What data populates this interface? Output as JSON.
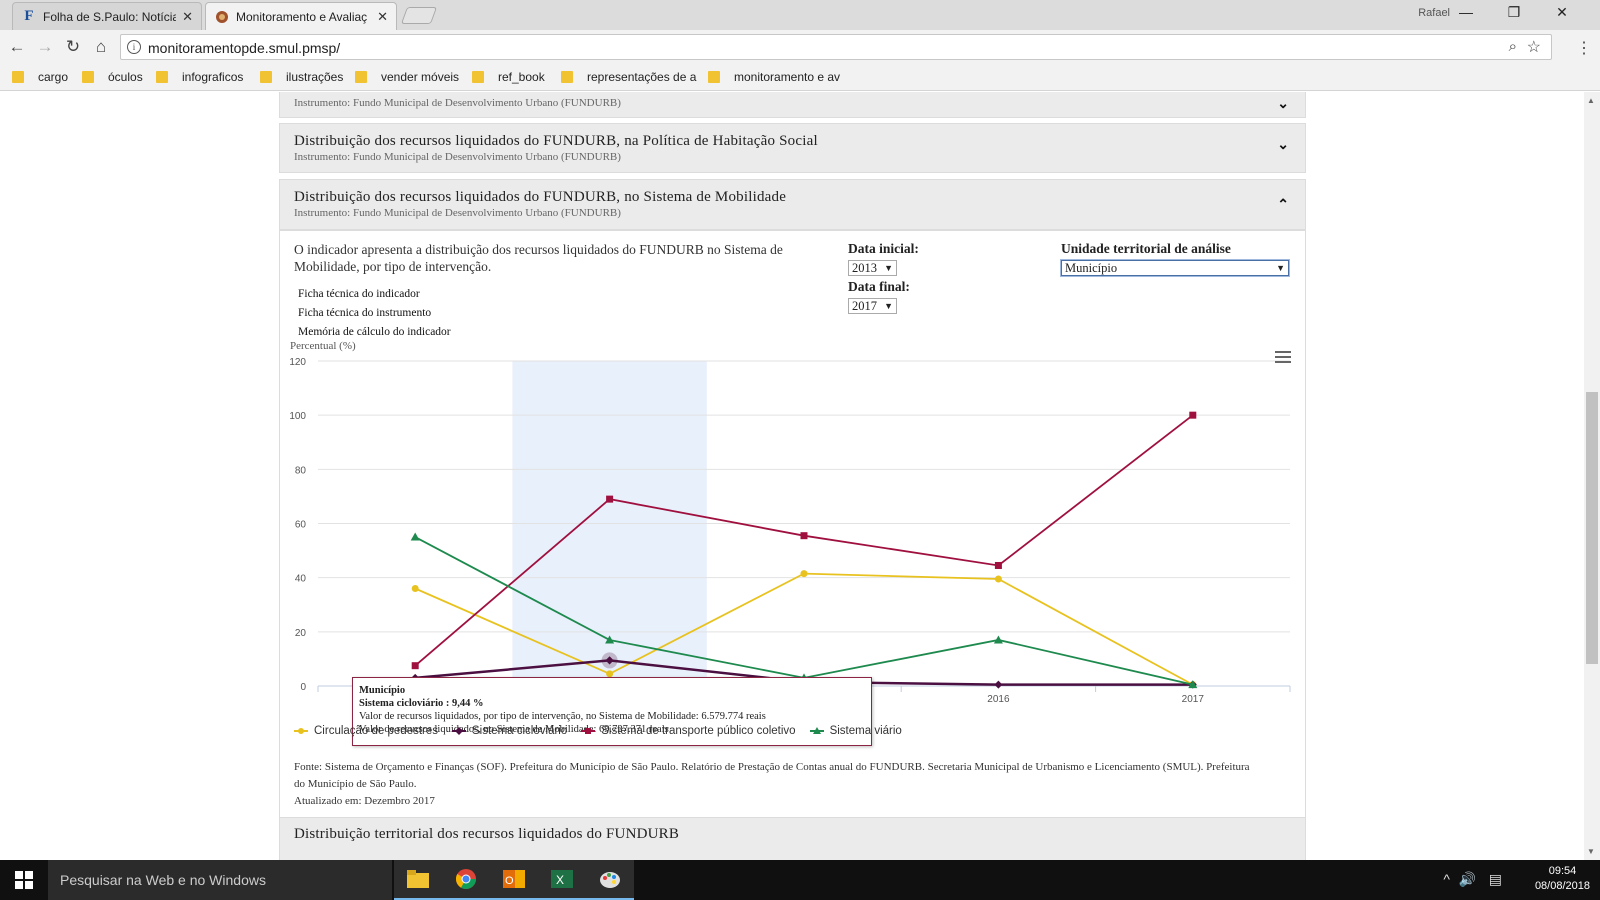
{
  "browser": {
    "tabs": [
      {
        "title": "Folha de S.Paulo: Notícia",
        "favicon": "F",
        "active": false
      },
      {
        "title": "Monitoramento e Avaliaç",
        "favicon": "brasao",
        "active": true
      }
    ],
    "user": "Rafael",
    "url": "monitoramentopde.smul.pmsp/",
    "bookmarks": [
      "cargo",
      "óculos",
      "infograficos",
      "ilustrações",
      "vender móveis",
      "ref_book",
      "representações de a",
      "monitoramento e av"
    ]
  },
  "page": {
    "top_section": {
      "subtitle": "Instrumento: Fundo Municipal de Desenvolvimento Urbano (FUNDURB)"
    },
    "section_habitacao": {
      "title": "Distribuição dos recursos liquidados do FUNDURB, na Política de Habitação Social",
      "subtitle": "Instrumento: Fundo Municipal de Desenvolvimento Urbano (FUNDURB)"
    },
    "section_mobilidade": {
      "title": "Distribuição dos recursos liquidados do FUNDURB, no Sistema de Mobilidade",
      "subtitle": "Instrumento: Fundo Municipal de Desenvolvimento Urbano (FUNDURB)",
      "description": "O indicador apresenta a distribuição dos recursos liquidados do FUNDURB no Sistema de Mobilidade, por tipo de intervenção.",
      "links": [
        "Ficha técnica do indicador",
        "Ficha técnica do instrumento",
        "Memória de cálculo do indicador"
      ],
      "filters": {
        "data_inicial_label": "Data inicial:",
        "data_inicial_value": "2013",
        "data_final_label": "Data final:",
        "data_final_value": "2017",
        "unidade_label": "Unidade territorial de análise",
        "unidade_value": "Município"
      },
      "tooltip": {
        "place": "Município",
        "series_line": "Sistema cicloviário : 9,44 %",
        "line1": "Valor de recursos liquidados, por tipo de intervenção, no Sistema de Mobilidade: 6.579.774 reais",
        "line2": "Valor de recursos liquidados, no Sistema de Mobilidade: 69.727.371 reais"
      },
      "source": "Fonte: Sistema de Orçamento e Finanças (SOF). Prefeitura do Município de São Paulo. Relatório de Prestação de Contas anual do FUNDURB. Secretaria Municipal de Urbanismo e Licenciamento (SMUL). Prefeitura do Município de São Paulo.",
      "updated": "Atualizado em: Dezembro 2017"
    },
    "section_territorial": {
      "title": "Distribuição territorial dos recursos liquidados do FUNDURB"
    }
  },
  "chart_data": {
    "type": "line",
    "ylabel": "Percentual (%)",
    "ylim": [
      0,
      120
    ],
    "yticks": [
      0,
      20,
      40,
      60,
      80,
      100,
      120
    ],
    "x": [
      "2013",
      "2014",
      "2015",
      "2016",
      "2017"
    ],
    "highlighted_category": "2014",
    "grid": true,
    "legend_position": "bottom-left",
    "series": [
      {
        "name": "Circulação de pedestres",
        "color": "#e8c21f",
        "marker": "circle",
        "values": [
          36,
          4.5,
          41.5,
          39.5,
          0.5
        ]
      },
      {
        "name": "Sistema cicloviário",
        "color": "#4b1041",
        "marker": "diamond",
        "values": [
          3,
          9.44,
          1.5,
          0.5,
          0.5
        ]
      },
      {
        "name": "Sistema de transporte público coletivo",
        "color": "#a0103f",
        "marker": "square",
        "values": [
          7.5,
          69,
          55.5,
          44.5,
          100
        ]
      },
      {
        "name": "Sistema viário",
        "color": "#1e8a4e",
        "marker": "triangle",
        "values": [
          55,
          17,
          3,
          17,
          0.5
        ]
      }
    ]
  },
  "taskbar": {
    "search_placeholder": "Pesquisar na Web e no Windows",
    "time": "09:54",
    "date": "08/08/2018"
  }
}
